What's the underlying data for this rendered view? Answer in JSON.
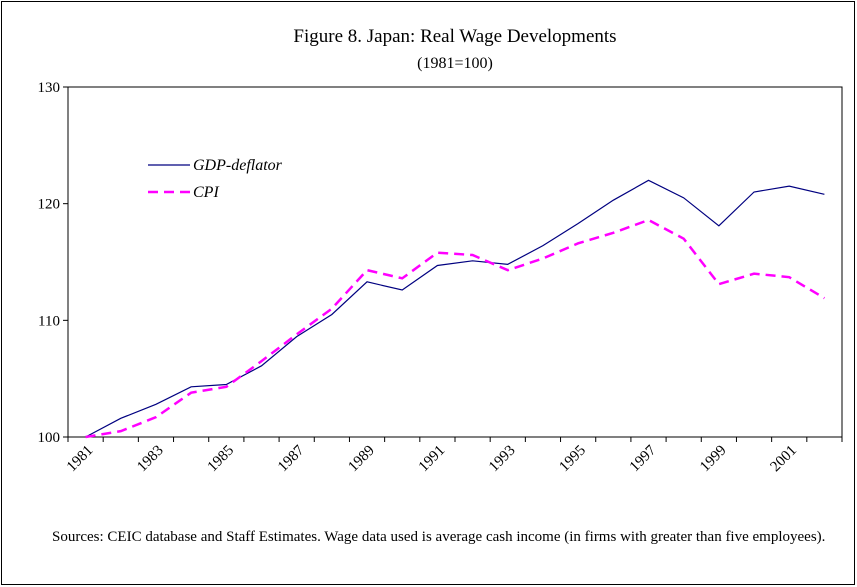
{
  "chart_data": {
    "type": "line",
    "title": "Figure 8. Japan: Real Wage Developments",
    "subtitle": "(1981=100)",
    "note": "Sources: CEIC database and Staff Estimates. Wage data used is average cash income (in firms with greater than five employees).",
    "categories": [
      "1981",
      null,
      "1983",
      null,
      "1985",
      null,
      "1987",
      null,
      "1989",
      null,
      "1991",
      null,
      "1993",
      null,
      "1995",
      null,
      "1997",
      null,
      "1999",
      null,
      "2001",
      null
    ],
    "series": [
      {
        "name": "GDP-deflator",
        "color": "#000080",
        "line_style": "solid",
        "values": [
          100,
          101.6,
          102.8,
          104.3,
          104.5,
          106.1,
          108.6,
          110.5,
          113.3,
          112.6,
          114.7,
          115.1,
          114.8,
          116.4,
          118.3,
          120.3,
          122.0,
          120.5,
          118.1,
          121.0,
          121.5,
          120.8
        ]
      },
      {
        "name": "CPI",
        "color": "#ff00ff",
        "line_style": "dashed",
        "values": [
          100,
          100.5,
          101.7,
          103.8,
          104.3,
          106.5,
          108.8,
          111.0,
          114.3,
          113.6,
          115.8,
          115.6,
          114.3,
          115.3,
          116.6,
          117.5,
          118.6,
          117.0,
          113.1,
          114.0,
          113.7,
          111.9
        ]
      }
    ],
    "ylim": [
      100,
      130
    ],
    "yticks": [
      100,
      110,
      120,
      130
    ],
    "grid": false,
    "legend": "upper-left"
  }
}
